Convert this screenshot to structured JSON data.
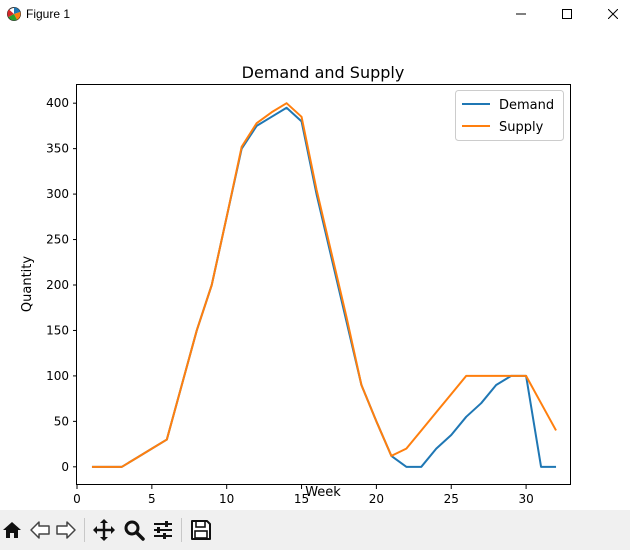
{
  "window": {
    "title": "Figure 1",
    "icons": {
      "app": "matplotlib-icon",
      "minimize": "minimize-icon",
      "maximize": "maximize-icon",
      "close": "close-icon"
    }
  },
  "toolbar": {
    "buttons": [
      {
        "name": "home-button",
        "icon": "home-icon"
      },
      {
        "name": "back-button",
        "icon": "back-arrow-icon"
      },
      {
        "name": "forward-button",
        "icon": "forward-arrow-icon"
      },
      {
        "name": "pan-button",
        "icon": "move-icon"
      },
      {
        "name": "zoom-button",
        "icon": "zoom-icon"
      },
      {
        "name": "configure-subplots-button",
        "icon": "sliders-icon"
      },
      {
        "name": "save-button",
        "icon": "save-icon"
      }
    ]
  },
  "chart_data": {
    "type": "line",
    "title": "Demand and Supply",
    "xlabel": "Week",
    "ylabel": "Quantity",
    "xlim": [
      0,
      33
    ],
    "ylim": [
      -20,
      420
    ],
    "xticks": [
      0,
      5,
      10,
      15,
      20,
      25,
      30
    ],
    "xtick_labels": [
      "0",
      "5",
      "10",
      "15",
      "20",
      "25",
      "30"
    ],
    "yticks": [
      0,
      50,
      100,
      150,
      200,
      250,
      300,
      350,
      400
    ],
    "ytick_labels": [
      "0",
      "50",
      "100",
      "150",
      "200",
      "250",
      "300",
      "350",
      "400"
    ],
    "grid": false,
    "legend_position": "upper-right",
    "x": [
      1,
      2,
      3,
      4,
      5,
      6,
      7,
      8,
      9,
      10,
      11,
      12,
      13,
      14,
      15,
      16,
      17,
      18,
      19,
      20,
      21,
      22,
      23,
      24,
      25,
      26,
      27,
      28,
      29,
      30,
      31,
      32
    ],
    "series": [
      {
        "name": "Demand",
        "color": "#1f77b4",
        "values": [
          0,
          0,
          0,
          10,
          20,
          30,
          90,
          150,
          200,
          275,
          350,
          375,
          385,
          395,
          380,
          300,
          230,
          160,
          90,
          50,
          12,
          0,
          0,
          20,
          35,
          55,
          70,
          90,
          100,
          100,
          0,
          0
        ]
      },
      {
        "name": "Supply",
        "color": "#ff7f0e",
        "values": [
          0,
          0,
          0,
          10,
          20,
          30,
          90,
          150,
          200,
          275,
          352,
          378,
          390,
          400,
          385,
          305,
          235,
          165,
          90,
          50,
          12,
          20,
          40,
          60,
          80,
          100,
          100,
          100,
          100,
          100,
          70,
          40
        ]
      }
    ]
  }
}
